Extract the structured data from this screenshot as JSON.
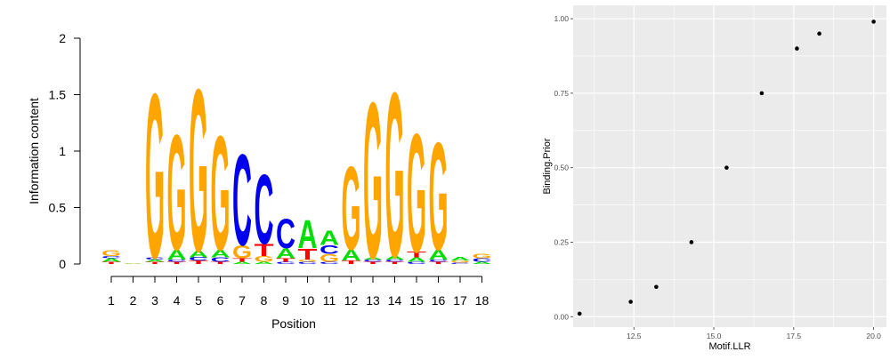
{
  "colors": {
    "A": "#00dd00",
    "C": "#0000ee",
    "G": "#ffa500",
    "T": "#ff0000",
    "panel_bg": "#ebebeb",
    "grid": "#ffffff",
    "point": "#000000"
  },
  "chart_data": [
    {
      "type": "sequence-logo",
      "xlabel": "Position",
      "ylabel": "Information content",
      "ylim": [
        0,
        2
      ],
      "y_ticks": [
        "0",
        "0.5",
        "1",
        "1.5",
        "2"
      ],
      "positions": [
        "1",
        "2",
        "3",
        "4",
        "5",
        "6",
        "7",
        "8",
        "9",
        "10",
        "11",
        "12",
        "13",
        "14",
        "15",
        "16",
        "17",
        "18"
      ],
      "stacks": [
        [
          {
            "l": "T",
            "h": 0.02
          },
          {
            "l": "A",
            "h": 0.03
          },
          {
            "l": "C",
            "h": 0.02
          },
          {
            "l": "G",
            "h": 0.05
          }
        ],
        [
          {
            "l": "A",
            "h": 0.005
          },
          {
            "l": "G",
            "h": 0.005
          }
        ],
        [
          {
            "l": "T",
            "h": 0.02
          },
          {
            "l": "A",
            "h": 0.02
          },
          {
            "l": "C",
            "h": 0.02
          },
          {
            "l": "G",
            "h": 1.5
          }
        ],
        [
          {
            "l": "T",
            "h": 0.02
          },
          {
            "l": "C",
            "h": 0.02
          },
          {
            "l": "A",
            "h": 0.09
          },
          {
            "l": "G",
            "h": 1.05
          }
        ],
        [
          {
            "l": "T",
            "h": 0.03
          },
          {
            "l": "C",
            "h": 0.03
          },
          {
            "l": "A",
            "h": 0.06
          },
          {
            "l": "G",
            "h": 1.48
          }
        ],
        [
          {
            "l": "T",
            "h": 0.02
          },
          {
            "l": "C",
            "h": 0.04
          },
          {
            "l": "A",
            "h": 0.07
          },
          {
            "l": "G",
            "h": 1.04
          }
        ],
        [
          {
            "l": "A",
            "h": 0.02
          },
          {
            "l": "T",
            "h": 0.03
          },
          {
            "l": "G",
            "h": 0.12
          },
          {
            "l": "C",
            "h": 0.83
          }
        ],
        [
          {
            "l": "A",
            "h": 0.02
          },
          {
            "l": "G",
            "h": 0.05
          },
          {
            "l": "T",
            "h": 0.11
          },
          {
            "l": "C",
            "h": 0.63
          }
        ],
        [
          {
            "l": "C",
            "h": 0.02
          },
          {
            "l": "T",
            "h": 0.03
          },
          {
            "l": "A",
            "h": 0.09
          },
          {
            "l": "C",
            "h": 0.27
          }
        ],
        [
          {
            "l": "C",
            "h": 0.02
          },
          {
            "l": "G",
            "h": 0.02
          },
          {
            "l": "T",
            "h": 0.1
          },
          {
            "l": "A",
            "h": 0.26
          }
        ],
        [
          {
            "l": "C",
            "h": 0.02
          },
          {
            "l": "G",
            "h": 0.07
          },
          {
            "l": "C",
            "h": 0.08
          },
          {
            "l": "A",
            "h": 0.13
          }
        ],
        [
          {
            "l": "T",
            "h": 0.03
          },
          {
            "l": "A",
            "h": 0.1
          },
          {
            "l": "G",
            "h": 0.76
          }
        ],
        [
          {
            "l": "T",
            "h": 0.02
          },
          {
            "l": "C",
            "h": 0.02
          },
          {
            "l": "A",
            "h": 0.02
          },
          {
            "l": "G",
            "h": 1.42
          }
        ],
        [
          {
            "l": "T",
            "h": 0.02
          },
          {
            "l": "C",
            "h": 0.02
          },
          {
            "l": "A",
            "h": 0.03
          },
          {
            "l": "G",
            "h": 1.5
          }
        ],
        [
          {
            "l": "C",
            "h": 0.02
          },
          {
            "l": "A",
            "h": 0.04
          },
          {
            "l": "T",
            "h": 0.05
          },
          {
            "l": "G",
            "h": 1.08
          }
        ],
        [
          {
            "l": "T",
            "h": 0.02
          },
          {
            "l": "C",
            "h": 0.02
          },
          {
            "l": "A",
            "h": 0.09
          },
          {
            "l": "G",
            "h": 0.98
          }
        ],
        [
          {
            "l": "C",
            "h": 0.01
          },
          {
            "l": "G",
            "h": 0.02
          },
          {
            "l": "A",
            "h": 0.03
          }
        ],
        [
          {
            "l": "A",
            "h": 0.02
          },
          {
            "l": "C",
            "h": 0.03
          },
          {
            "l": "G",
            "h": 0.04
          }
        ]
      ]
    },
    {
      "type": "scatter",
      "xlabel": "Motif.LLR",
      "ylabel": "Binding.Prior",
      "xlim": [
        10.6,
        20.4
      ],
      "ylim": [
        -0.035,
        1.045
      ],
      "x_ticks": [
        12.5,
        15.0,
        17.5,
        20.0
      ],
      "x_tick_labels": [
        "12.5",
        "15.0",
        "17.5",
        "20.0"
      ],
      "y_ticks": [
        0,
        0.25,
        0.5,
        0.75,
        1.0
      ],
      "y_tick_labels": [
        "0.00",
        "0.25",
        "0.50",
        "0.75",
        "1.00"
      ],
      "grid": true,
      "points": [
        {
          "x": 10.8,
          "y": 0.01
        },
        {
          "x": 12.4,
          "y": 0.05
        },
        {
          "x": 13.2,
          "y": 0.1
        },
        {
          "x": 14.3,
          "y": 0.25
        },
        {
          "x": 15.4,
          "y": 0.5
        },
        {
          "x": 16.5,
          "y": 0.75
        },
        {
          "x": 17.6,
          "y": 0.9
        },
        {
          "x": 18.3,
          "y": 0.95
        },
        {
          "x": 20.0,
          "y": 0.99
        }
      ]
    }
  ]
}
